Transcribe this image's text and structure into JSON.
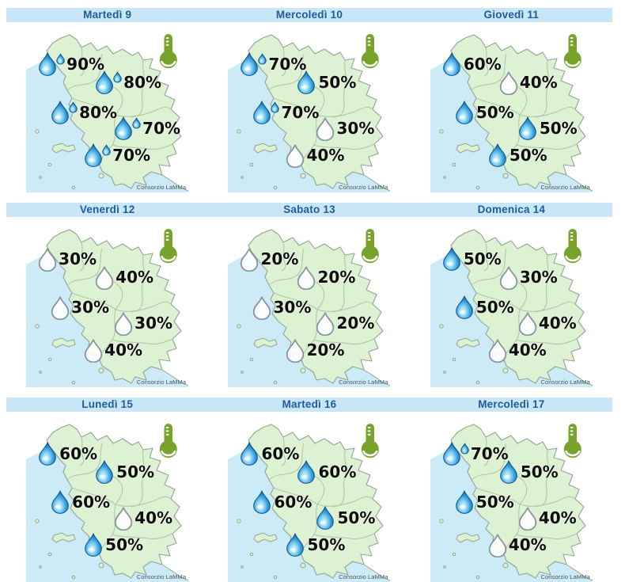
{
  "credit": "Consorzio LaMMa",
  "icons": {
    "temperature": "thermometer-icon",
    "rain_filled": "raindrop-icon",
    "rain_high": "raindrop-double-icon",
    "rain_low": "raindrop-outline-icon"
  },
  "colors": {
    "header_bg": "#c9e6f7",
    "header_text": "#1d5c9b",
    "sea": "#cdeaf7",
    "land": "#ddf1d3",
    "coast": "#8fa693",
    "province": "#a4c29e",
    "drop_stroke": "#0b4f8e",
    "drop_g0": "#e4f8ff",
    "drop_g1": "#8ed7f5",
    "drop_g2": "#339cda",
    "drop_g3": "#0c5ea6",
    "drop_outline": "#8795a0",
    "thermometer": "#77a32d",
    "percent_text": "#0d0d0d",
    "credit_text": "#44555c"
  },
  "days": [
    {
      "label": "Martedì 9",
      "markers": [
        {
          "region": "northwest",
          "value": "90%",
          "style": "double"
        },
        {
          "region": "north",
          "value": "80%",
          "style": "double"
        },
        {
          "region": "west",
          "value": "80%",
          "style": "double"
        },
        {
          "region": "southeast",
          "value": "70%",
          "style": "double"
        },
        {
          "region": "south",
          "value": "70%",
          "style": "double"
        }
      ]
    },
    {
      "label": "Mercoledì 10",
      "markers": [
        {
          "region": "northwest",
          "value": "70%",
          "style": "double"
        },
        {
          "region": "north",
          "value": "50%",
          "style": "filled"
        },
        {
          "region": "west",
          "value": "70%",
          "style": "double"
        },
        {
          "region": "southeast",
          "value": "30%",
          "style": "outline"
        },
        {
          "region": "south",
          "value": "40%",
          "style": "outline"
        }
      ]
    },
    {
      "label": "Giovedì 11",
      "markers": [
        {
          "region": "northwest",
          "value": "60%",
          "style": "filled"
        },
        {
          "region": "north",
          "value": "40%",
          "style": "outline"
        },
        {
          "region": "west",
          "value": "50%",
          "style": "filled"
        },
        {
          "region": "southeast",
          "value": "50%",
          "style": "filled"
        },
        {
          "region": "south",
          "value": "50%",
          "style": "filled"
        }
      ]
    },
    {
      "label": "Venerdì 12",
      "markers": [
        {
          "region": "northwest",
          "value": "30%",
          "style": "outline"
        },
        {
          "region": "north",
          "value": "40%",
          "style": "outline"
        },
        {
          "region": "west",
          "value": "30%",
          "style": "outline"
        },
        {
          "region": "southeast",
          "value": "30%",
          "style": "outline"
        },
        {
          "region": "south",
          "value": "40%",
          "style": "outline"
        }
      ]
    },
    {
      "label": "Sabato 13",
      "markers": [
        {
          "region": "northwest",
          "value": "20%",
          "style": "outline"
        },
        {
          "region": "north",
          "value": "20%",
          "style": "outline"
        },
        {
          "region": "west",
          "value": "30%",
          "style": "outline"
        },
        {
          "region": "southeast",
          "value": "20%",
          "style": "outline"
        },
        {
          "region": "south",
          "value": "20%",
          "style": "outline"
        }
      ]
    },
    {
      "label": "Domenica 14",
      "markers": [
        {
          "region": "northwest",
          "value": "50%",
          "style": "filled"
        },
        {
          "region": "north",
          "value": "30%",
          "style": "outline"
        },
        {
          "region": "west",
          "value": "50%",
          "style": "filled"
        },
        {
          "region": "southeast",
          "value": "40%",
          "style": "outline"
        },
        {
          "region": "south",
          "value": "40%",
          "style": "outline"
        }
      ]
    },
    {
      "label": "Lunedì 15",
      "markers": [
        {
          "region": "northwest",
          "value": "60%",
          "style": "filled"
        },
        {
          "region": "north",
          "value": "50%",
          "style": "filled"
        },
        {
          "region": "west",
          "value": "60%",
          "style": "filled"
        },
        {
          "region": "southeast",
          "value": "40%",
          "style": "outline"
        },
        {
          "region": "south",
          "value": "50%",
          "style": "filled"
        }
      ]
    },
    {
      "label": "Martedì 16",
      "markers": [
        {
          "region": "northwest",
          "value": "60%",
          "style": "filled"
        },
        {
          "region": "north",
          "value": "60%",
          "style": "filled"
        },
        {
          "region": "west",
          "value": "60%",
          "style": "filled"
        },
        {
          "region": "southeast",
          "value": "50%",
          "style": "filled"
        },
        {
          "region": "south",
          "value": "50%",
          "style": "filled"
        }
      ]
    },
    {
      "label": "Mercoledì 17",
      "markers": [
        {
          "region": "northwest",
          "value": "70%",
          "style": "double"
        },
        {
          "region": "north",
          "value": "50%",
          "style": "filled"
        },
        {
          "region": "west",
          "value": "50%",
          "style": "filled"
        },
        {
          "region": "southeast",
          "value": "40%",
          "style": "outline"
        },
        {
          "region": "south",
          "value": "40%",
          "style": "outline"
        }
      ]
    }
  ]
}
